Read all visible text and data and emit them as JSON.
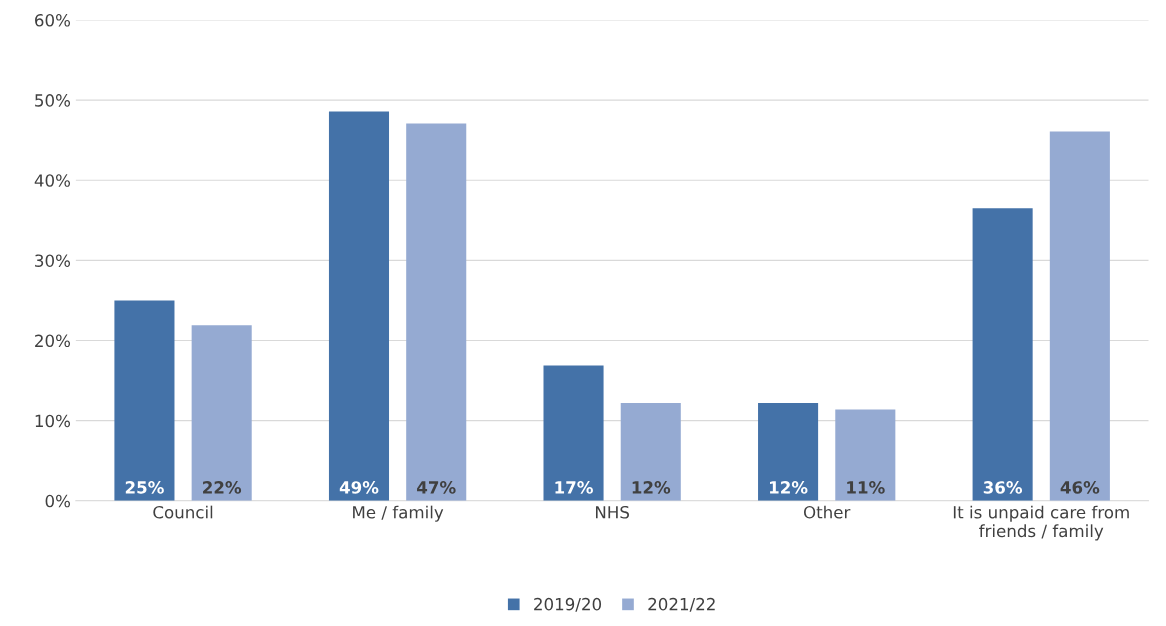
{
  "chart_data": {
    "type": "bar",
    "categories": [
      "Council",
      "Me / family",
      "NHS",
      "Other",
      "It is unpaid care from\nfriends / family"
    ],
    "series": [
      {
        "name": "2019/20",
        "color": "#4472a8",
        "values": [
          25.0,
          48.6,
          16.9,
          12.2,
          36.5
        ],
        "value_labels": [
          "25%",
          "49%",
          "17%",
          "12%",
          "36%"
        ]
      },
      {
        "name": "2021/22",
        "color": "#95aad2",
        "values": [
          21.9,
          47.1,
          12.2,
          11.4,
          46.1
        ],
        "value_labels": [
          "22%",
          "47%",
          "12%",
          "11%",
          "46%"
        ]
      }
    ],
    "ylim": [
      0,
      60
    ],
    "yticks": [
      {
        "value": 0,
        "label": "0%"
      },
      {
        "value": 10,
        "label": "10%"
      },
      {
        "value": 20,
        "label": "20%"
      },
      {
        "value": 30,
        "label": "30%"
      },
      {
        "value": 40,
        "label": "40%"
      },
      {
        "value": 50,
        "label": "50%"
      },
      {
        "value": 60,
        "label": "60%"
      }
    ],
    "grid": "y",
    "legend": "bottom"
  }
}
